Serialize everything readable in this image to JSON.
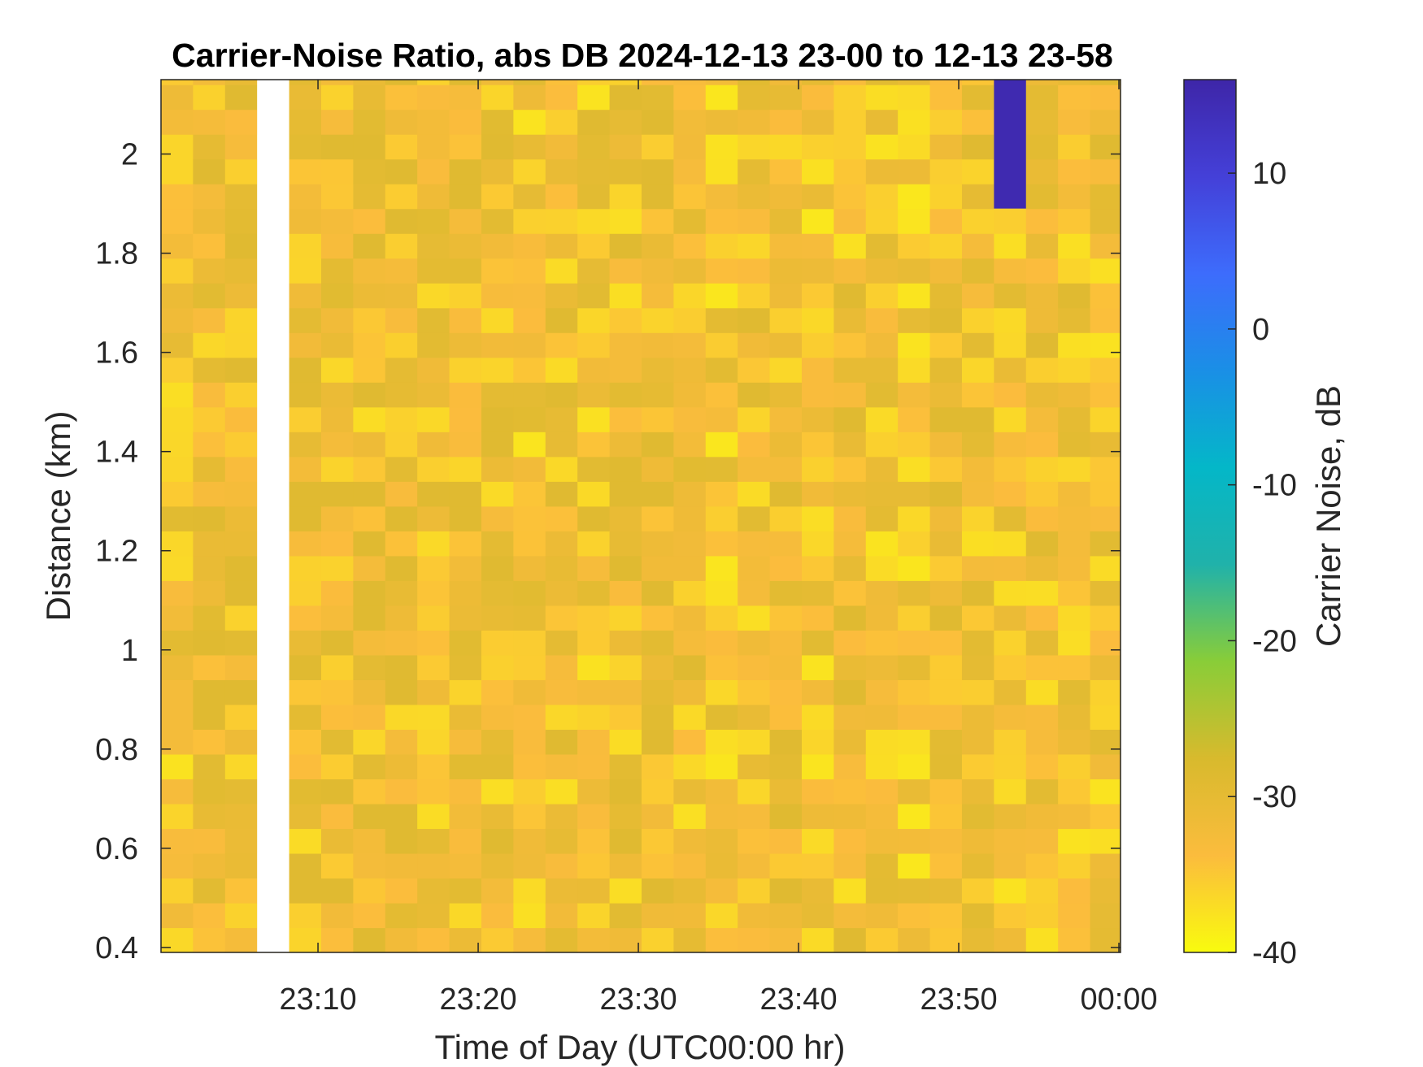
{
  "chart_data": {
    "type": "heatmap",
    "title": "Carrier-Noise Ratio, abs DB 2024-12-13 23-00 to 12-13 23-58",
    "xlabel": "Time of Day (UTC00:00 hr)",
    "ylabel": "Distance (km)",
    "colorbar_label": "Carrier Noise, dB",
    "x_tick_labels": [
      "23:10",
      "23:20",
      "23:30",
      "23:40",
      "23:50",
      "00:00"
    ],
    "x_tick_minutes": [
      10,
      20,
      30,
      40,
      50,
      60
    ],
    "xlim_minutes": [
      0.2,
      60.1
    ],
    "y_ticks": [
      0.4,
      0.6,
      0.8,
      1,
      1.2,
      1.4,
      1.6,
      1.8,
      2
    ],
    "y_tick_labels": [
      "0.4",
      "0.6",
      "0.8",
      "1",
      "1.2",
      "1.4",
      "1.6",
      "1.8",
      "2"
    ],
    "ylim": [
      0.39,
      2.15
    ],
    "colorbar_ticks": [
      -40,
      -30,
      -20,
      -10,
      0,
      10
    ],
    "colorbar_tick_labels": [
      "-40",
      "-30",
      "-20",
      "-10",
      "0",
      "10"
    ],
    "clim": [
      -40,
      16
    ],
    "colormap": [
      "#f9fb0e",
      "#fbbc3d",
      "#d8ba2d",
      "#89cd38",
      "#20b2aa",
      "#04b7c8",
      "#1a8fe6",
      "#3d6cfc",
      "#4440d8",
      "#3e26a8"
    ],
    "grid": false,
    "time_bin_minutes": 2,
    "gate_km": 0.05,
    "gaps": [
      {
        "t_start": 6.2,
        "t_end": 8.2,
        "note": "missing data"
      }
    ],
    "anomalies": [
      {
        "t_start": 52.2,
        "t_end": 54.2,
        "d_start": 1.89,
        "d_end": 2.15,
        "value": 15
      }
    ],
    "cells_summary": {
      "typical_min": -38,
      "typical_max": -29,
      "median": -33
    }
  }
}
